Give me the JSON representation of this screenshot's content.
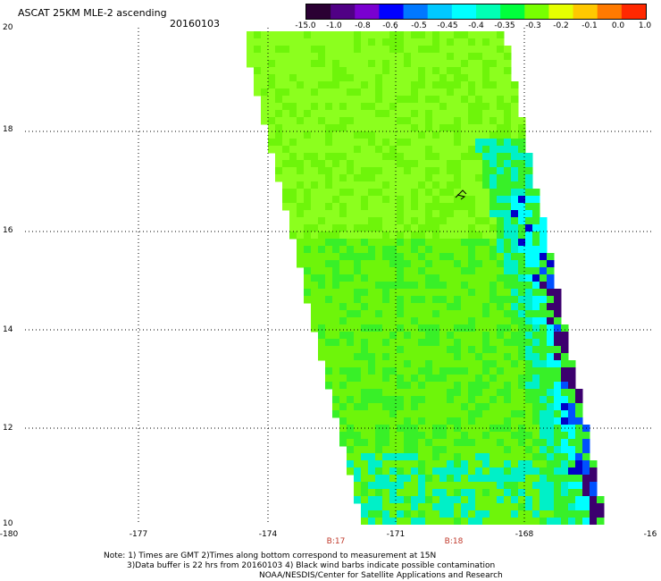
{
  "header": {
    "title": "ASCAT 25KM MLE-2 ascending",
    "date": "20160103"
  },
  "colorbar": {
    "labels": [
      "-15.0",
      "-1.0",
      "-0.8",
      "-0.6",
      "-0.5",
      "-0.45",
      "-0.4",
      "-0.35",
      "-0.3",
      "-0.2",
      "-0.1",
      "0.0",
      "1.0"
    ],
    "colors": [
      "#2b0033",
      "#500085",
      "#7a00d0",
      "#0000ff",
      "#0078ff",
      "#00c8ff",
      "#00ffff",
      "#00ffb4",
      "#00ff3c",
      "#78ff00",
      "#e6ff00",
      "#ffc800",
      "#ff7a00",
      "#ff2800"
    ]
  },
  "map": {
    "lat_labels": [
      "20",
      "18",
      "16",
      "14",
      "12",
      "10"
    ],
    "lon_labels": [
      "-180",
      "-177",
      "-174",
      "-171",
      "-168",
      "-16"
    ],
    "times": [
      "B:17",
      "B:18"
    ],
    "lat_range": [
      10,
      20
    ],
    "lon_range": [
      -180,
      -166
    ],
    "grid": "dotted",
    "field_colors": {
      "base": "#6ef50a",
      "light": "#8cff1e",
      "mid": "#38f028",
      "teal": "#00f0c8",
      "cyan": "#00ffff",
      "blue": "#0050ff",
      "deep_blue": "#0000c8",
      "purple": "#3c006e"
    },
    "wind_barb_marker": "wind-barb-icon"
  },
  "notes": {
    "line1": "Note: 1) Times are GMT 2)Times along bottom correspond to measurement at 15N",
    "line2": "3)Data buffer is 22 hrs from 20160103 4) Black wind barbs indicate possible contamination",
    "line3": "NOAA/NESDIS/Center for Satellite Applications and Research"
  }
}
